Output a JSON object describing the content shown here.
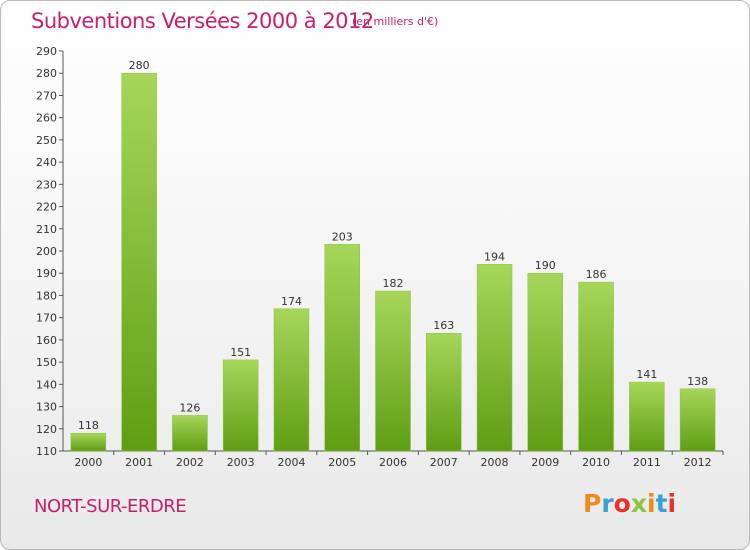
{
  "header": {
    "title": "Subventions Versées 2000 à 2012",
    "unit_note": "(en milliers d'€)"
  },
  "footer": {
    "commune": "NORT-SUR-ERDRE",
    "logo_text": "Proxiti",
    "logo_colors": [
      "#f08a1c",
      "#3aa0d8",
      "#e8312a",
      "#8cc63f",
      "#f08a1c",
      "#3aa0d8",
      "#e8312a"
    ]
  },
  "colors": {
    "accent": "#c81f6a",
    "bar_top": "#a6d65a",
    "bar_bottom": "#5f9e14"
  },
  "chart_data": {
    "type": "bar",
    "title": "Subventions Versées 2000 à 2012",
    "subtitle": "(en milliers d'€)",
    "categories": [
      "2000",
      "2001",
      "2002",
      "2003",
      "2004",
      "2005",
      "2006",
      "2007",
      "2008",
      "2009",
      "2010",
      "2011",
      "2012"
    ],
    "values": [
      118,
      280,
      126,
      151,
      174,
      203,
      182,
      163,
      194,
      190,
      186,
      141,
      138
    ],
    "ylim": [
      110,
      290
    ],
    "yticks": [
      110,
      120,
      130,
      140,
      150,
      160,
      170,
      180,
      190,
      200,
      210,
      220,
      230,
      240,
      250,
      260,
      270,
      280,
      290
    ],
    "grid": false,
    "legend": "none"
  }
}
